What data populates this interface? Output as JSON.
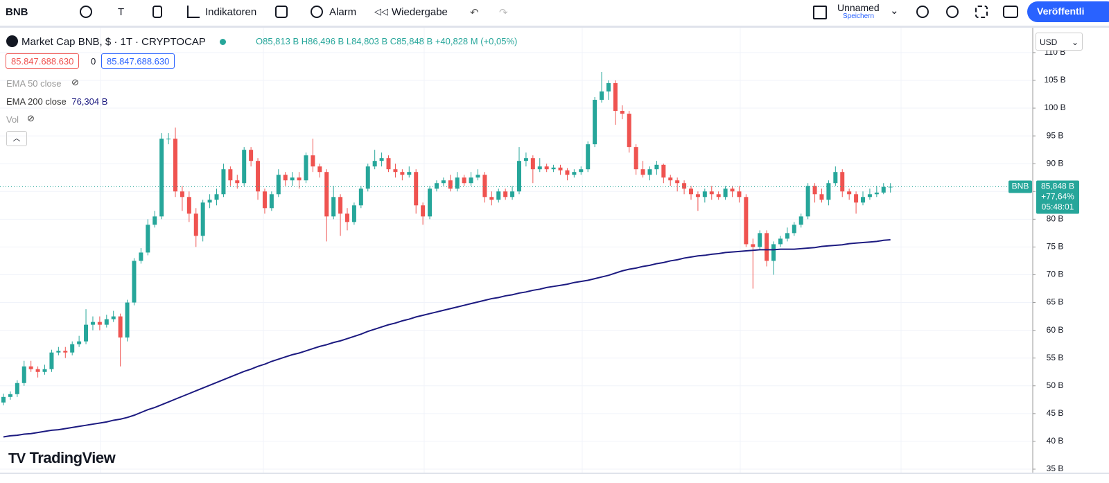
{
  "toolbar": {
    "symbol": "BNB",
    "text_tool": "T",
    "indicators": "Indikatoren",
    "alarm": "Alarm",
    "replay": "Wiedergabe",
    "layout_name": "Unnamed",
    "save": "Speichern",
    "publish": "Veröffentli"
  },
  "legend": {
    "title": "Market Cap BNB, $ · 1T · CRYPTOCAP",
    "ohlc": "O85,813 B",
    "high": "H86,496 B",
    "low": "L84,803 B",
    "close": "C85,848 B",
    "change": "+40,828 M (+0,05%)",
    "sell": "85.847.688.630",
    "spread": "0",
    "buy": "85.847.688.630",
    "ema50": "EMA 50 close",
    "ema200": "EMA 200 close",
    "ema200_value": "76,304 B",
    "vol": "Vol"
  },
  "currency": "USD",
  "watermark": "TradingView",
  "price_label": {
    "tag": "BNB",
    "price": "85,848 B",
    "change": "+77,64%",
    "countdown": "05:48:01"
  },
  "chart_data": {
    "type": "candlestick",
    "up_color": "#26a69a",
    "down_color": "#ef5350",
    "grid": true,
    "ylim": [
      34.25,
      114.48
    ],
    "yticks": [
      {
        "value": 35,
        "label": "35 B"
      },
      {
        "value": 40,
        "label": "40 B"
      },
      {
        "value": 45,
        "label": "45 B"
      },
      {
        "value": 50,
        "label": "50 B"
      },
      {
        "value": 55,
        "label": "55 B"
      },
      {
        "value": 60,
        "label": "60 B"
      },
      {
        "value": 65,
        "label": "65 B"
      },
      {
        "value": 70,
        "label": "70 B"
      },
      {
        "value": 75,
        "label": "75 B"
      },
      {
        "value": 80,
        "label": "80 B"
      },
      {
        "value": 85,
        "label": "85 B"
      },
      {
        "value": 90,
        "label": "90 B"
      },
      {
        "value": 95,
        "label": "95 B"
      },
      {
        "value": 100,
        "label": "100 B"
      },
      {
        "value": 105,
        "label": "105 B"
      },
      {
        "value": 110,
        "label": "110 B"
      }
    ],
    "open": [
      47,
      48,
      48.5,
      50.5,
      53.5,
      53,
      52.5,
      53,
      56,
      56.3,
      56,
      57.5,
      58,
      61,
      61.5,
      61,
      62,
      62.5,
      58.7,
      65,
      72.5,
      74,
      79,
      80.5,
      94.5,
      94.5,
      85,
      84,
      81,
      77,
      83,
      83.5,
      84.5,
      89,
      87,
      86.5,
      92.5,
      90.5,
      85,
      82,
      84.5,
      88,
      87,
      87.5,
      87,
      91.5,
      89.5,
      88.5,
      80.5,
      84,
      81,
      79.5,
      82.5,
      85.5,
      89.5,
      90.5,
      91,
      89,
      88.5,
      88,
      88.5,
      82.5,
      80.5,
      85.5,
      86.5,
      87,
      85.5,
      87.5,
      86.5,
      87.5,
      88,
      84,
      83.5,
      85,
      84,
      85,
      90.5,
      91,
      89,
      89.5,
      89,
      89.3,
      88.8,
      88,
      88.5,
      89,
      93.5,
      101.5,
      103,
      104.5,
      99.5,
      99,
      93,
      89,
      88,
      89,
      89.8,
      87.5,
      87,
      86.5,
      85.5,
      84.5,
      84,
      85,
      84.5,
      84,
      85.5,
      85,
      84,
      75.5,
      75,
      77.5,
      72.5,
      75.5,
      76.5,
      77.5,
      79,
      80.5,
      86,
      84.5,
      83.5,
      86.5,
      88.5,
      85,
      84.5,
      83,
      84,
      84.5,
      84.8,
      85.813
    ],
    "high": [
      48.6,
      49,
      51,
      54.5,
      54.5,
      53.5,
      53.8,
      56.5,
      57,
      57,
      58,
      59,
      63.8,
      62.5,
      62.5,
      62.8,
      63.5,
      63,
      65.5,
      73,
      74.8,
      80,
      81.5,
      95.5,
      95.5,
      96.5,
      86,
      85,
      82,
      83.5,
      84.5,
      85.5,
      90,
      89.5,
      88,
      93,
      93,
      91,
      85.5,
      85,
      89,
      88.5,
      88.5,
      88.5,
      92,
      94.5,
      90,
      89,
      86,
      84.5,
      82,
      83,
      86,
      90,
      92.5,
      92,
      91.5,
      90,
      89,
      89.5,
      89,
      83,
      86,
      87,
      87.5,
      88,
      88.5,
      88,
      88.5,
      89,
      88.5,
      85,
      85.5,
      85.5,
      86,
      93,
      92,
      91.5,
      91,
      90,
      89.8,
      89.8,
      89.2,
      89,
      89.5,
      94,
      102,
      106.5,
      105,
      105,
      100.5,
      99.5,
      93.5,
      90.5,
      89.5,
      90.5,
      90,
      88,
      87.5,
      87,
      86,
      85,
      85.5,
      86,
      85,
      86,
      86,
      86,
      84.5,
      76.5,
      78,
      78,
      76,
      77,
      78.5,
      79.5,
      81,
      86.5,
      86.5,
      85.5,
      87,
      89.5,
      89,
      85.5,
      85,
      85,
      85.5,
      86,
      86.5,
      86.496
    ],
    "low": [
      46.5,
      47.5,
      48,
      50,
      52.5,
      51.5,
      52,
      52.5,
      55.5,
      55,
      55.5,
      57,
      57.5,
      60,
      60,
      60.5,
      61.5,
      53.5,
      58,
      64.5,
      72,
      73.5,
      78.5,
      80,
      93.5,
      84,
      81.5,
      79.5,
      75,
      76,
      82,
      82.5,
      84,
      86,
      85.5,
      86,
      89.5,
      83.5,
      81,
      81.5,
      84,
      86,
      86,
      85.5,
      86.5,
      88.5,
      87.5,
      76,
      80,
      77,
      78,
      79,
      82,
      85,
      89,
      89.5,
      88.5,
      87.5,
      87,
      87.5,
      81,
      79,
      80,
      85,
      86,
      85,
      85,
      86,
      86,
      87,
      83,
      82.5,
      83,
      83.5,
      83.5,
      84.5,
      89.5,
      86.5,
      88.5,
      88.5,
      88.5,
      88,
      87,
      87.5,
      88,
      88.5,
      93,
      101,
      101.5,
      97,
      98,
      92,
      88,
      87.5,
      87,
      88,
      86.5,
      86,
      85,
      84.5,
      83.5,
      81.5,
      83,
      83.5,
      83.5,
      83.5,
      84,
      83,
      75,
      67.5,
      74.5,
      71.5,
      70,
      75,
      76,
      77,
      78.5,
      80,
      83,
      83,
      82.5,
      86,
      84,
      83.5,
      81,
      82.5,
      83.5,
      84,
      84.5,
      84.803
    ],
    "close": [
      48,
      48.5,
      50.5,
      53.5,
      53,
      52.5,
      53,
      56,
      56.3,
      56,
      57.5,
      58,
      61,
      61.5,
      61,
      62,
      62.5,
      58.7,
      65,
      72.5,
      74,
      79,
      80.5,
      94.5,
      94.5,
      85,
      84,
      81,
      77,
      83,
      83.5,
      84.5,
      89,
      87,
      86.5,
      92.5,
      90.5,
      85,
      82,
      84.5,
      88,
      87,
      87.5,
      87,
      91.5,
      89.5,
      88.5,
      80.5,
      84,
      81,
      79.5,
      82.5,
      85.5,
      89.5,
      90.5,
      91,
      89,
      88.5,
      88,
      88.5,
      82.5,
      80.5,
      85.5,
      86.5,
      87,
      85.5,
      87.5,
      86.5,
      87.5,
      88,
      84,
      83.5,
      85,
      84,
      85,
      90.5,
      91,
      89,
      89.5,
      89,
      89.3,
      88.8,
      88,
      88.5,
      89,
      93.5,
      101.5,
      103,
      104.5,
      99.5,
      99,
      93,
      89,
      88,
      89,
      89.8,
      87.5,
      87,
      86.5,
      85.5,
      84.5,
      84,
      85,
      84.5,
      84,
      85.5,
      85,
      84,
      75.5,
      75,
      77.5,
      72.5,
      75.5,
      76.5,
      77.5,
      79,
      80.5,
      86,
      84.5,
      83.5,
      86.5,
      88.5,
      85,
      84.5,
      83,
      84,
      84.5,
      84.8,
      85.813,
      85.848
    ],
    "series": [
      {
        "name": "EMA 200 close",
        "color": "#1c1a80",
        "values": [
          40.8,
          41,
          41.1,
          41.3,
          41.4,
          41.6,
          41.8,
          42,
          42.1,
          42.3,
          42.5,
          42.7,
          42.9,
          43.1,
          43.3,
          43.5,
          43.8,
          44,
          44.3,
          44.7,
          45.2,
          45.7,
          46.1,
          46.6,
          47.1,
          47.6,
          48.1,
          48.6,
          49.1,
          49.6,
          50.1,
          50.6,
          51.1,
          51.6,
          52.1,
          52.6,
          53,
          53.5,
          53.9,
          54.4,
          54.8,
          55.2,
          55.6,
          55.9,
          56.3,
          56.7,
          57.1,
          57.4,
          57.8,
          58.1,
          58.5,
          58.9,
          59.3,
          59.8,
          60.2,
          60.6,
          61,
          61.3,
          61.7,
          62,
          62.4,
          62.7,
          63,
          63.3,
          63.6,
          63.9,
          64.2,
          64.5,
          64.8,
          65.1,
          65.4,
          65.7,
          65.9,
          66.2,
          66.4,
          66.7,
          66.9,
          67.2,
          67.4,
          67.7,
          67.9,
          68.1,
          68.3,
          68.6,
          68.8,
          69,
          69.3,
          69.6,
          69.9,
          70.3,
          70.7,
          71,
          71.2,
          71.5,
          71.7,
          72,
          72.2,
          72.5,
          72.7,
          73,
          73.2,
          73.4,
          73.5,
          73.7,
          73.8,
          74,
          74.1,
          74.2,
          74.3,
          74.4,
          74.5,
          74.5,
          74.5,
          74.6,
          74.6,
          74.6,
          74.7,
          74.8,
          74.9,
          75.1,
          75.2,
          75.3,
          75.4,
          75.6,
          75.7,
          75.8,
          75.9,
          76,
          76.2,
          76.304
        ]
      }
    ]
  }
}
